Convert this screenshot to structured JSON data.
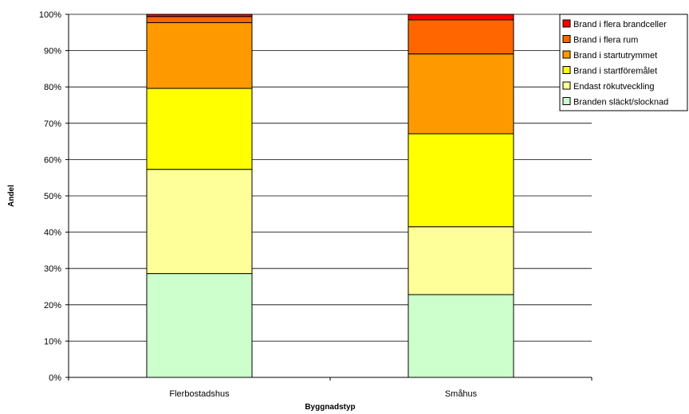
{
  "chart_data": {
    "type": "bar",
    "stacked": true,
    "title": "",
    "xlabel": "Byggnadstyp",
    "ylabel": "Andel",
    "ylim": [
      0,
      100
    ],
    "y_tick_format": "percent",
    "grid": true,
    "legend_position": "top-right",
    "categories": [
      "Flerbostadshus",
      "Småhus"
    ],
    "series": [
      {
        "name": "Branden släckt/slocknad",
        "color": "#CCFFCC",
        "values": [
          28.6,
          22.8
        ]
      },
      {
        "name": "Endast rökutveckling",
        "color": "#FFFF99",
        "values": [
          28.7,
          18.7
        ]
      },
      {
        "name": "Brand i startföremålet",
        "color": "#FFFF00",
        "values": [
          22.3,
          25.6
        ]
      },
      {
        "name": "Brand i startutrymmet",
        "color": "#FF9900",
        "values": [
          18.1,
          22.0
        ]
      },
      {
        "name": "Brand i flera rum",
        "color": "#FF6600",
        "values": [
          1.7,
          9.4
        ]
      },
      {
        "name": "Brand i flera brandceller",
        "color": "#FF0000",
        "values": [
          0.6,
          1.5
        ]
      }
    ]
  }
}
